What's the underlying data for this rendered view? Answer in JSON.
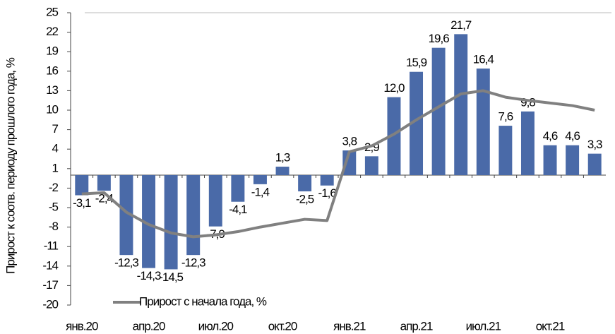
{
  "chart_data": {
    "type": "bar_line",
    "y_label": "Прирост к соотв. периоду прошлого года, %",
    "categories": [
      "янв.20",
      null,
      null,
      "апр.20",
      null,
      null,
      "июл.20",
      null,
      null,
      "окт.20",
      null,
      null,
      "янв.21",
      null,
      null,
      "апр.21",
      null,
      null,
      "июл.21",
      null,
      null,
      "окт.21",
      null,
      null
    ],
    "series": [
      {
        "type": "bar",
        "color": "#4a6aa8",
        "values": [
          -3.1,
          -2.4,
          -12.3,
          -14.3,
          -14.5,
          -12.3,
          -7.9,
          -4.1,
          -1.4,
          1.3,
          -2.5,
          -1.6,
          3.8,
          2.9,
          12.0,
          15.9,
          19.6,
          21.7,
          16.4,
          7.6,
          9.8,
          4.6,
          4.6,
          3.3
        ],
        "value_labels": [
          "-3,1",
          "-2,4",
          "-12,3",
          "-14,3",
          "-14,5",
          "-12,3",
          "-7,9",
          "-4,1",
          "-1,4",
          "1,3",
          "-2,5",
          "-1,6",
          "3,8",
          "2,9",
          "12,0",
          "15,9",
          "19,6",
          "21,7",
          "16,4",
          "7,6",
          "9,8",
          "4,6",
          "4,6",
          "3,3"
        ]
      },
      {
        "type": "line",
        "name": "Прирост с начала года, %",
        "color": "#808080",
        "values": [
          -2.9,
          -2.7,
          -5.7,
          -7.6,
          -8.9,
          -9.5,
          -9.2,
          -8.7,
          -8.0,
          -7.4,
          -6.8,
          -7.0,
          3.6,
          4.5,
          6.3,
          8.5,
          10.5,
          12.5,
          13.0,
          12.0,
          11.5,
          11.1,
          10.7,
          10.0
        ]
      }
    ],
    "ylim": [
      -20,
      25
    ],
    "yticks": [
      -20,
      -17,
      -14,
      -11,
      -8,
      -5,
      -2,
      1,
      4,
      7,
      10,
      13,
      16,
      19,
      22,
      25
    ],
    "legend": "bottom-left"
  }
}
